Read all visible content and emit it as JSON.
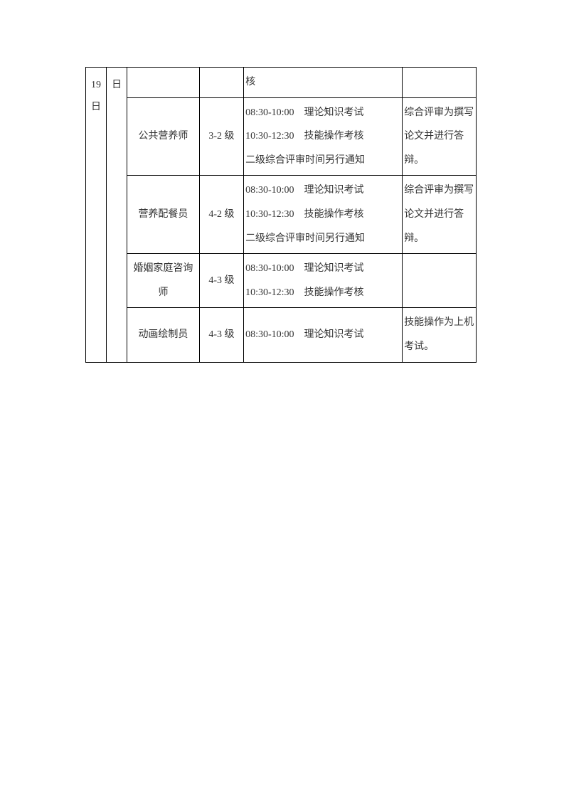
{
  "table": {
    "date_col1": "19 日",
    "date_col2": "日",
    "rows": [
      {
        "name": "",
        "level": "",
        "schedule": "核",
        "note": ""
      },
      {
        "name": "公共营养师",
        "level": "3-2 级",
        "schedule": "08:30-10:00　理论知识考试\n10:30-12:30　技能操作考核\n二级综合评审时间另行通知",
        "note": "综合评审为撰写论文并进行答辩。"
      },
      {
        "name": "营养配餐员",
        "level": "4-2 级",
        "schedule": "08:30-10:00　理论知识考试\n10:30-12:30　技能操作考核\n二级综合评审时间另行通知",
        "note": "综合评审为撰写论文并进行答辩。"
      },
      {
        "name": "婚姻家庭咨询师",
        "level": "4-3 级",
        "schedule": "08:30-10:00　理论知识考试\n10:30-12:30　技能操作考核",
        "note": ""
      },
      {
        "name": "动画绘制员",
        "level": "4-3 级",
        "schedule": "08:30-10:00　理论知识考试",
        "note": "技能操作为上机考试。"
      }
    ]
  }
}
